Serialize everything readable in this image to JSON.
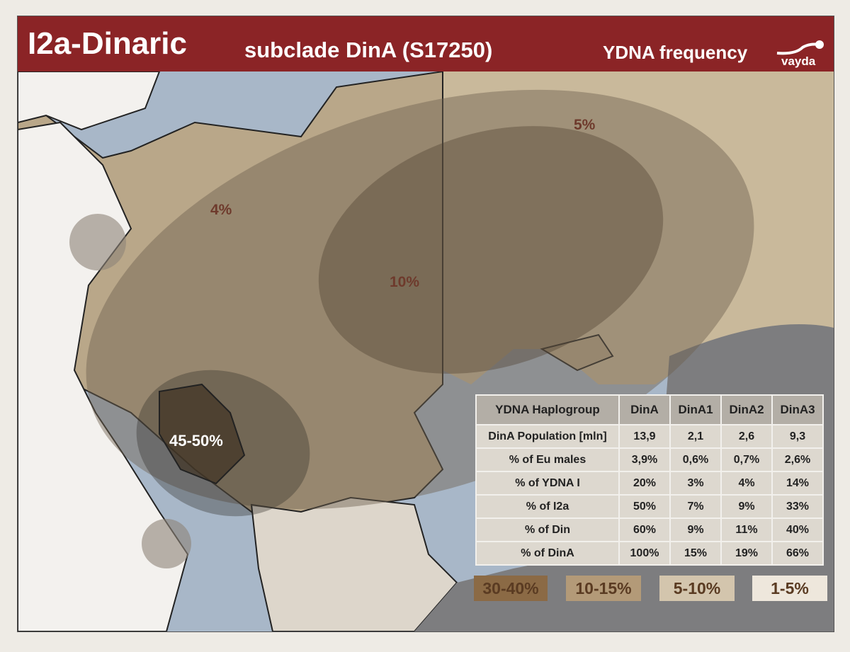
{
  "header": {
    "title": "I2a-Dinaric",
    "subtitle": "subclade DinA (S17250)",
    "right_label": "YDNA frequency",
    "logo_text": "vayda"
  },
  "map_labels": {
    "north_east": "5%",
    "north_west": "4%",
    "center": "10%",
    "core": "45-50%"
  },
  "colors": {
    "header": "#8b2426",
    "sea": "#a8b7c8",
    "legend_30_40": "#8b6a45",
    "legend_10_15": "#b39a78",
    "legend_5_10": "#d3c5ad",
    "legend_1_5": "#eee7dc"
  },
  "table": {
    "headers": [
      "YDNA Haplogroup",
      "DinA",
      "DinA1",
      "DinA2",
      "DinA3"
    ],
    "rows": [
      [
        "DinA Population [mln]",
        "13,9",
        "2,1",
        "2,6",
        "9,3"
      ],
      [
        "%  of Eu males",
        "3,9%",
        "0,6%",
        "0,7%",
        "2,6%"
      ],
      [
        "% of YDNA I",
        "20%",
        "3%",
        "4%",
        "14%"
      ],
      [
        "% of I2a",
        "50%",
        "7%",
        "9%",
        "33%"
      ],
      [
        "% of Din",
        "60%",
        "9%",
        "11%",
        "40%"
      ],
      [
        "% of DinA",
        "100%",
        "15%",
        "19%",
        "66%"
      ]
    ]
  },
  "legend": [
    "30-40%",
    "10-15%",
    "5-10%",
    "1-5%"
  ]
}
